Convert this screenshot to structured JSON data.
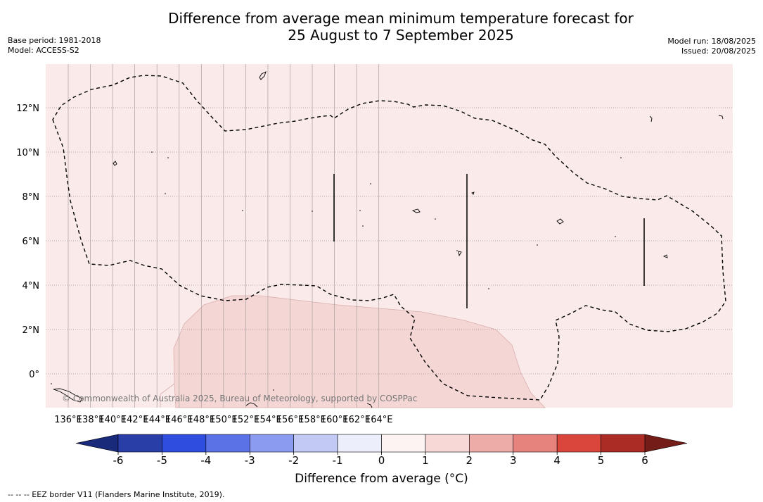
{
  "title_line1": "Difference from average mean minimum temperature forecast for",
  "title_line2": "25 August to 7 September 2025",
  "base_period": "Base period: 1981-2018",
  "model": "Model: ACCESS-S2",
  "model_run": "Model run: 18/08/2025",
  "issued": "Issued: 20/08/2025",
  "copyright": "© Commonwealth of Australia 2025, Bureau of Meteorology, supported by COSPPac",
  "lon_labels": [
    "136°E",
    "138°E",
    "140°E",
    "142°E",
    "144°E",
    "146°E",
    "148°E",
    "150°E",
    "152°E",
    "154°E",
    "156°E",
    "158°E",
    "160°E",
    "162°E",
    "164°E"
  ],
  "lat_labels": [
    "12°N",
    "10°N",
    "8°N",
    "6°N",
    "4°N",
    "2°N",
    "0°"
  ],
  "colorbar": {
    "label": "Difference from average (°C)",
    "ticks": [
      "-6",
      "-5",
      "-4",
      "-3",
      "-2",
      "-1",
      "0",
      "1",
      "2",
      "3",
      "4",
      "5",
      "6"
    ],
    "colors": [
      "#2a3ea8",
      "#2f4ee0",
      "#5b72e6",
      "#8b9bf0",
      "#c3c9f5",
      "#eceefc",
      "#fdf3f3",
      "#f7d8d6",
      "#eeaca8",
      "#e6837d",
      "#db463c",
      "#ab2b25"
    ],
    "under_color": "#192a7a",
    "over_color": "#741c18"
  },
  "legend_note": "--  --  -- EEZ border V11 (Flanders Marine Institute, 2019)."
}
